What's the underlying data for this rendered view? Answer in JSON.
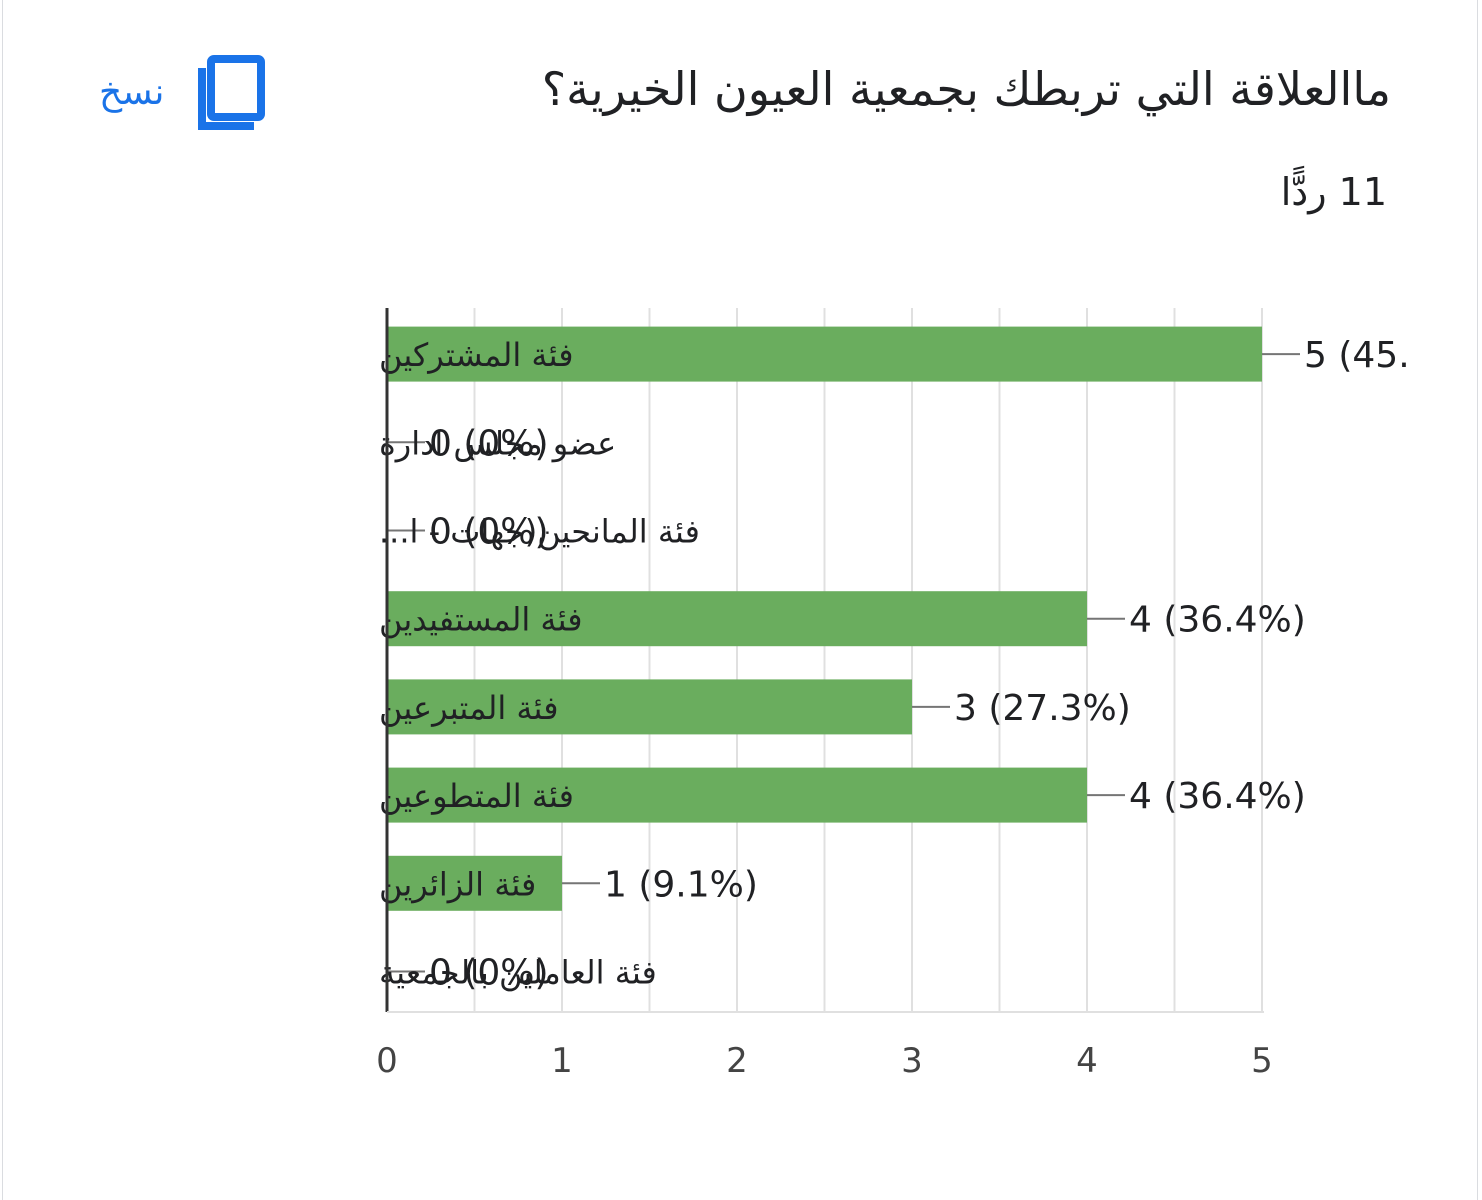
{
  "header": {
    "title": "ماالعلاقة التي تربطك بجمعية العيون الخيرية؟",
    "response_count": "11 ردًّا",
    "copy_label": "نسخ",
    "copy_icon": "copy-icon"
  },
  "colors": {
    "bar": "#6aad5e",
    "grid": "#e0e0e0",
    "axis": "#333333",
    "accent": "#1a73e8",
    "text": "#202124"
  },
  "chart_data": {
    "type": "bar",
    "orientation": "horizontal",
    "categories": [
      "فئة المشتركين",
      "عضو مجلس ادارة",
      "فئة المانحين(جهات - ا...",
      "فئة المستفيدين",
      "فئة المتبرعين",
      "فئة المتطوعين",
      "فئة الزائرين",
      "فئة العاملين بالجمعية"
    ],
    "values": [
      5,
      0,
      0,
      4,
      3,
      4,
      1,
      0
    ],
    "value_labels": [
      "5 (45.",
      "0 (0%)",
      "0 (0%)",
      "4 (36.4%)",
      "3 (27.3%)",
      "4 (36.4%)",
      "1 (9.1%)",
      "0 (0%)"
    ],
    "xlim": [
      0,
      5
    ],
    "x_ticks": [
      "0",
      "1",
      "2",
      "3",
      "4",
      "5"
    ],
    "grid": true
  }
}
